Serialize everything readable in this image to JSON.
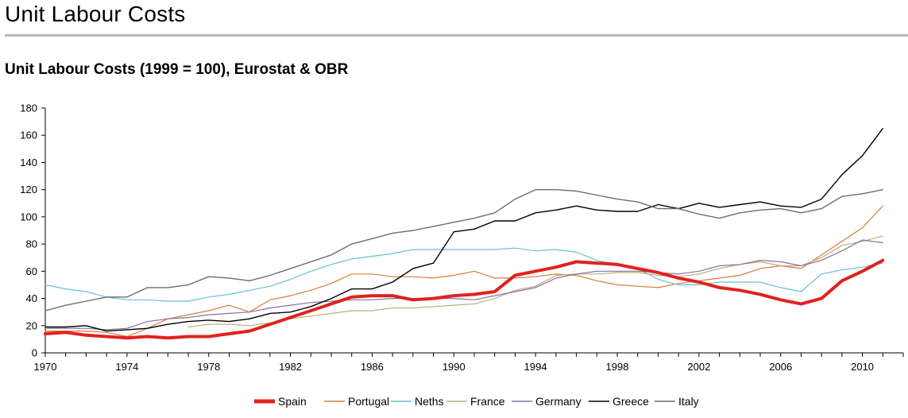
{
  "page": {
    "title": "Unit Labour Costs"
  },
  "chart_data": {
    "type": "line",
    "title": "Unit Labour Costs (1999 = 100), Eurostat & OBR",
    "xlabel": "",
    "ylabel": "",
    "xlim": [
      1970,
      2012
    ],
    "ylim": [
      0,
      180
    ],
    "x_ticks": [
      "1970",
      "1974",
      "1978",
      "1982",
      "1986",
      "1990",
      "1994",
      "1998",
      "2002",
      "2006",
      "2010"
    ],
    "y_ticks": [
      "0",
      "20",
      "40",
      "60",
      "80",
      "100",
      "120",
      "140",
      "160",
      "180"
    ],
    "grid": false,
    "legend_position": "bottom",
    "series": [
      {
        "name": "Spain",
        "color": "#e0221f",
        "width": 4,
        "x": [
          1970,
          1971,
          1972,
          1973,
          1974,
          1975,
          1976,
          1977,
          1978,
          1979,
          1980,
          1981,
          1982,
          1983,
          1984,
          1985,
          1986,
          1987,
          1988,
          1989,
          1990,
          1991,
          1992,
          1993,
          1994,
          1995,
          1996,
          1997,
          1998,
          1999,
          2000,
          2001,
          2002,
          2003,
          2004,
          2005,
          2006,
          2007,
          2008,
          2009,
          2010,
          2011
        ],
        "y": [
          14,
          15,
          13,
          12,
          11,
          12,
          11,
          12,
          12,
          14,
          16,
          21,
          26,
          31,
          36,
          41,
          42,
          42,
          39,
          40,
          42,
          43,
          45,
          57,
          60,
          63,
          67,
          66,
          65,
          62,
          59,
          55,
          52,
          48,
          46,
          43,
          39,
          36,
          40,
          53,
          60,
          68
        ]
      },
      {
        "name": "Portugal",
        "color": "#d77d3d",
        "width": 1.2,
        "x": [
          1970,
          1971,
          1972,
          1973,
          1974,
          1975,
          1976,
          1977,
          1978,
          1979,
          1980,
          1981,
          1982,
          1983,
          1984,
          1985,
          1986,
          1987,
          1988,
          1989,
          1990,
          1991,
          1992,
          1993,
          1994,
          1995,
          1996,
          1997,
          1998,
          1999,
          2000,
          2001,
          2002,
          2003,
          2004,
          2005,
          2006,
          2007,
          2008,
          2009,
          2010,
          2011
        ],
        "y": [
          16,
          16,
          16,
          15,
          12,
          18,
          25,
          28,
          31,
          35,
          30,
          39,
          42,
          46,
          51,
          58,
          58,
          56,
          56,
          55,
          57,
          60,
          55,
          55,
          56,
          58,
          57,
          53,
          50,
          49,
          48,
          51,
          53,
          55,
          57,
          62,
          64,
          62,
          72,
          82,
          92,
          108
        ]
      },
      {
        "name": "Neths",
        "color": "#66c1d6",
        "width": 1.2,
        "x": [
          1970,
          1971,
          1972,
          1973,
          1974,
          1975,
          1976,
          1977,
          1978,
          1979,
          1980,
          1981,
          1982,
          1983,
          1984,
          1985,
          1986,
          1987,
          1988,
          1989,
          1990,
          1991,
          1992,
          1993,
          1994,
          1995,
          1996,
          1997,
          1998,
          1999,
          2000,
          2001,
          2002,
          2003,
          2004,
          2005,
          2006,
          2007,
          2008,
          2009,
          2010,
          2011
        ],
        "y": [
          50,
          47,
          45,
          41,
          39,
          39,
          38,
          38,
          41,
          43,
          46,
          49,
          54,
          60,
          65,
          69,
          71,
          73,
          76,
          76,
          76,
          76,
          76,
          77,
          75,
          76,
          74,
          68,
          65,
          62,
          54,
          50,
          50,
          52,
          52,
          52,
          48,
          45,
          58,
          61,
          63,
          66
        ]
      },
      {
        "name": "France",
        "color": "#bfae78",
        "width": 1.2,
        "x": [
          1977,
          1978,
          1979,
          1980,
          1981,
          1982,
          1983,
          1984,
          1985,
          1986,
          1987,
          1988,
          1989,
          1990,
          1991,
          1992,
          1993,
          1994,
          1995,
          1996,
          1997,
          1998,
          1999,
          2000,
          2001,
          2002,
          2003,
          2004,
          2005,
          2006,
          2007,
          2008,
          2009,
          2010,
          2011
        ],
        "y": [
          19,
          21,
          21,
          20,
          22,
          25,
          27,
          29,
          31,
          31,
          33,
          33,
          34,
          35,
          36,
          40,
          46,
          49,
          57,
          58,
          58,
          59,
          59,
          57,
          56,
          58,
          62,
          65,
          67,
          64,
          64,
          70,
          79,
          82,
          86
        ]
      },
      {
        "name": "Germany",
        "color": "#8a6fa0",
        "width": 1.2,
        "x": [
          1970,
          1971,
          1972,
          1973,
          1974,
          1975,
          1976,
          1977,
          1978,
          1979,
          1980,
          1981,
          1982,
          1983,
          1984,
          1985,
          1986,
          1987,
          1988,
          1989,
          1990,
          1991,
          1992,
          1993,
          1994,
          1995,
          1996,
          1997,
          1998,
          1999,
          2000,
          2001,
          2002,
          2003,
          2004,
          2005,
          2006,
          2007,
          2008,
          2009,
          2010,
          2011
        ],
        "y": [
          18,
          18,
          18,
          17,
          18,
          23,
          25,
          26,
          28,
          29,
          30,
          33,
          35,
          37,
          38,
          39,
          39,
          40,
          40,
          40,
          40,
          39,
          42,
          45,
          48,
          55,
          58,
          60,
          60,
          60,
          59,
          58,
          60,
          64,
          65,
          68,
          67,
          64,
          68,
          75,
          83,
          81
        ]
      },
      {
        "name": "Greece",
        "color": "#000000",
        "width": 1.4,
        "x": [
          1970,
          1971,
          1972,
          1973,
          1974,
          1975,
          1976,
          1977,
          1978,
          1979,
          1980,
          1981,
          1982,
          1983,
          1984,
          1985,
          1986,
          1987,
          1988,
          1989,
          1990,
          1991,
          1992,
          1993,
          1994,
          1995,
          1996,
          1997,
          1998,
          1999,
          2000,
          2001,
          2002,
          2003,
          2004,
          2005,
          2006,
          2007,
          2008,
          2009,
          2010,
          2011
        ],
        "y": [
          19,
          19,
          20,
          16,
          17,
          18,
          21,
          23,
          24,
          23,
          25,
          29,
          30,
          34,
          40,
          47,
          47,
          52,
          62,
          66,
          89,
          91,
          97,
          97,
          103,
          105,
          108,
          105,
          104,
          104,
          109,
          106,
          110,
          107,
          109,
          111,
          108,
          107,
          113,
          131,
          145,
          165
        ]
      },
      {
        "name": "Italy",
        "color": "#6d6d6d",
        "width": 1.4,
        "x": [
          1970,
          1971,
          1972,
          1973,
          1974,
          1975,
          1976,
          1977,
          1978,
          1979,
          1980,
          1981,
          1982,
          1983,
          1984,
          1985,
          1986,
          1987,
          1988,
          1989,
          1990,
          1991,
          1992,
          1993,
          1994,
          1995,
          1996,
          1997,
          1998,
          1999,
          2000,
          2001,
          2002,
          2003,
          2004,
          2005,
          2006,
          2007,
          2008,
          2009,
          2010,
          2011
        ],
        "y": [
          31,
          35,
          38,
          41,
          41,
          48,
          48,
          50,
          56,
          55,
          53,
          57,
          62,
          67,
          72,
          80,
          84,
          88,
          90,
          93,
          96,
          99,
          103,
          113,
          120,
          120,
          119,
          116,
          113,
          111,
          106,
          106,
          102,
          99,
          103,
          105,
          106,
          103,
          106,
          115,
          117,
          120
        ]
      }
    ],
    "legend_order": [
      "Spain",
      "Portugal",
      "Neths",
      "France",
      "Germany",
      "Greece",
      "Italy"
    ]
  }
}
